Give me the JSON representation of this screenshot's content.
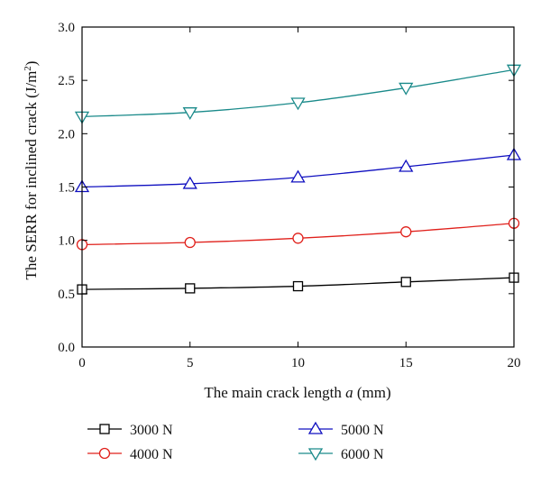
{
  "chart_data": {
    "type": "line",
    "xlabel_main": "The main crack length ",
    "xlabel_var": "a",
    "xlabel_unit": " (mm)",
    "ylabel_main": "The SERR for inclined crack (J/m",
    "ylabel_sup": "2",
    "ylabel_end": ")",
    "xlim": [
      0,
      20
    ],
    "ylim": [
      0,
      3.0
    ],
    "xticks": [
      "0",
      "5",
      "10",
      "15",
      "20"
    ],
    "yticks": [
      "0.0",
      "0.5",
      "1.0",
      "1.5",
      "2.0",
      "2.5",
      "3.0"
    ],
    "x": [
      0,
      5,
      10,
      15,
      20
    ],
    "series": [
      {
        "name": "3000 N",
        "marker": "square",
        "color": "#000000",
        "values": [
          0.54,
          0.55,
          0.57,
          0.61,
          0.65
        ]
      },
      {
        "name": "4000 N",
        "marker": "circle",
        "color": "#e0201b",
        "values": [
          0.96,
          0.98,
          1.02,
          1.08,
          1.16
        ]
      },
      {
        "name": "5000 N",
        "marker": "triangle-up",
        "color": "#1010c0",
        "values": [
          1.5,
          1.53,
          1.59,
          1.69,
          1.8
        ]
      },
      {
        "name": "6000 N",
        "marker": "triangle-down",
        "color": "#1a8a8a",
        "values": [
          2.16,
          2.2,
          2.29,
          2.43,
          2.6
        ]
      }
    ],
    "grid": false,
    "legend": "bottom"
  }
}
